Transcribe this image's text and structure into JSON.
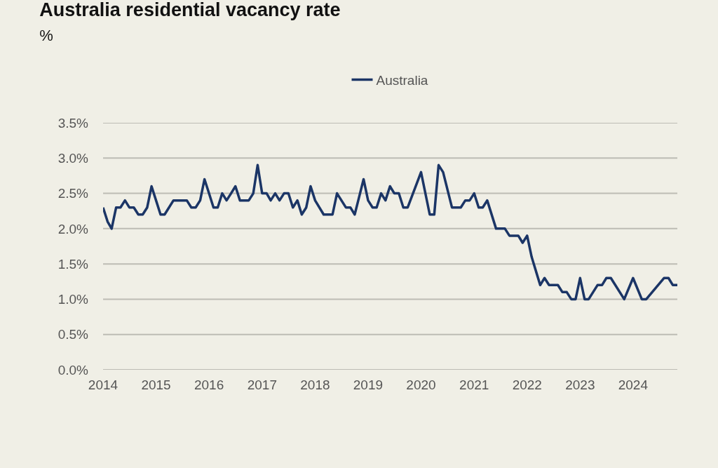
{
  "chart_data": {
    "type": "line",
    "title": "Australia residential vacancy rate",
    "subtitle": "%",
    "x": [
      "2014-01",
      "2014-02",
      "2014-03",
      "2014-04",
      "2014-05",
      "2014-06",
      "2014-07",
      "2014-08",
      "2014-09",
      "2014-10",
      "2014-11",
      "2014-12",
      "2015-01",
      "2015-02",
      "2015-03",
      "2015-05",
      "2015-08",
      "2015-09",
      "2015-10",
      "2015-11",
      "2015-12",
      "2016-01",
      "2016-02",
      "2016-03",
      "2016-04",
      "2016-05",
      "2016-06",
      "2016-07",
      "2016-08",
      "2016-10",
      "2016-11",
      "2016-12",
      "2017-01",
      "2017-02",
      "2017-03",
      "2017-04",
      "2017-05",
      "2017-06",
      "2017-07",
      "2017-08",
      "2017-09",
      "2017-10",
      "2017-11",
      "2017-12",
      "2018-01",
      "2018-03",
      "2018-05",
      "2018-06",
      "2018-08",
      "2018-09",
      "2018-10",
      "2018-12",
      "2019-01",
      "2019-02",
      "2019-03",
      "2019-04",
      "2019-05",
      "2019-06",
      "2019-07",
      "2019-08",
      "2019-09",
      "2019-10",
      "2020-01",
      "2020-03",
      "2020-04",
      "2020-05",
      "2020-06",
      "2020-08",
      "2020-10",
      "2020-11",
      "2020-12",
      "2021-01",
      "2021-02",
      "2021-03",
      "2021-04",
      "2021-06",
      "2021-08",
      "2021-09",
      "2021-11",
      "2021-12",
      "2022-01",
      "2022-02",
      "2022-04",
      "2022-05",
      "2022-06",
      "2022-08",
      "2022-09",
      "2022-10",
      "2022-11",
      "2022-12",
      "2023-01",
      "2023-02",
      "2023-03",
      "2023-05",
      "2023-06",
      "2023-07",
      "2023-08",
      "2023-11",
      "2024-01",
      "2024-03",
      "2024-04",
      "2024-08",
      "2024-09",
      "2024-10",
      "2024-11"
    ],
    "series": [
      {
        "name": "Australia",
        "color": "#1b3566",
        "values": [
          2.3,
          2.1,
          2.0,
          2.3,
          2.3,
          2.4,
          2.3,
          2.3,
          2.2,
          2.2,
          2.3,
          2.6,
          2.4,
          2.2,
          2.2,
          2.4,
          2.4,
          2.3,
          2.3,
          2.4,
          2.7,
          2.5,
          2.3,
          2.3,
          2.5,
          2.4,
          2.5,
          2.6,
          2.4,
          2.4,
          2.5,
          2.9,
          2.5,
          2.5,
          2.4,
          2.5,
          2.4,
          2.5,
          2.5,
          2.3,
          2.4,
          2.2,
          2.3,
          2.6,
          2.4,
          2.2,
          2.2,
          2.5,
          2.3,
          2.3,
          2.2,
          2.7,
          2.4,
          2.3,
          2.3,
          2.5,
          2.4,
          2.6,
          2.5,
          2.5,
          2.3,
          2.3,
          2.8,
          2.2,
          2.2,
          2.9,
          2.8,
          2.3,
          2.3,
          2.4,
          2.4,
          2.5,
          2.3,
          2.3,
          2.4,
          2.0,
          2.0,
          1.9,
          1.9,
          1.8,
          1.9,
          1.6,
          1.2,
          1.3,
          1.2,
          1.2,
          1.1,
          1.1,
          1.0,
          1.0,
          1.3,
          1.0,
          1.0,
          1.2,
          1.2,
          1.3,
          1.3,
          1.0,
          1.3,
          1.0,
          1.0,
          1.3,
          1.3,
          1.2,
          1.2
        ]
      }
    ],
    "xlim": [
      "2014-01",
      "2024-11"
    ],
    "xticks": [
      {
        "value": "2014-01",
        "label": "2014"
      },
      {
        "value": "2015-01",
        "label": "2015"
      },
      {
        "value": "2016-01",
        "label": "2016"
      },
      {
        "value": "2017-01",
        "label": "2017"
      },
      {
        "value": "2018-01",
        "label": "2018"
      },
      {
        "value": "2019-01",
        "label": "2019"
      },
      {
        "value": "2020-01",
        "label": "2020"
      },
      {
        "value": "2021-01",
        "label": "2021"
      },
      {
        "value": "2022-01",
        "label": "2022"
      },
      {
        "value": "2023-01",
        "label": "2023"
      },
      {
        "value": "2024-01",
        "label": "2024"
      }
    ],
    "ylim": [
      0,
      3.5
    ],
    "yticks": [
      {
        "value": 0,
        "label": "0.0%"
      },
      {
        "value": 0.5,
        "label": "0.5%"
      },
      {
        "value": 1,
        "label": "1.0%"
      },
      {
        "value": 1.5,
        "label": "1.5%"
      },
      {
        "value": 2,
        "label": "2.0%"
      },
      {
        "value": 2.5,
        "label": "2.5%"
      },
      {
        "value": 3,
        "label": "3.0%"
      },
      {
        "value": 3.5,
        "label": "3.5%"
      }
    ],
    "grid": "y",
    "legend": "top",
    "line_style": "solid",
    "marker": "none"
  }
}
